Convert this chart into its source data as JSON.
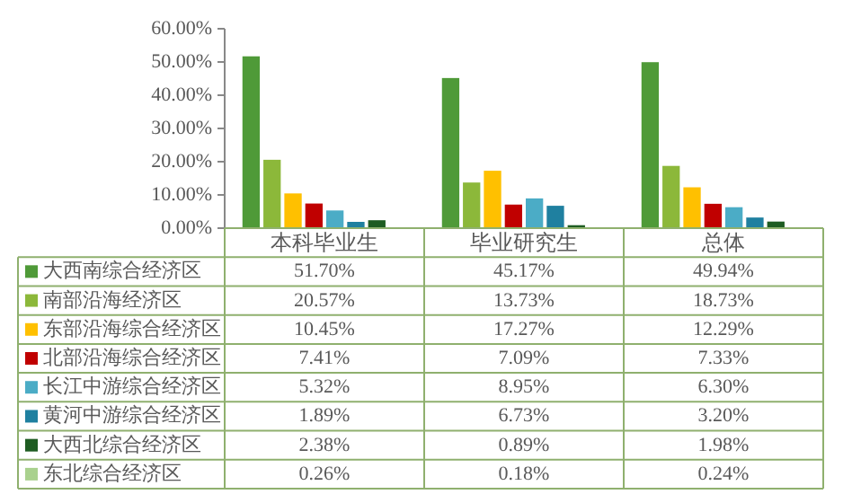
{
  "chart_data": {
    "type": "bar",
    "categories": [
      "本科毕业生",
      "毕业研究生",
      "总体"
    ],
    "series": [
      {
        "name": "大西南综合经济区",
        "color": "#4f9a38",
        "values": [
          51.7,
          45.17,
          49.94
        ],
        "value_labels": [
          "51.70%",
          "45.17%",
          "49.94%"
        ]
      },
      {
        "name": "南部沿海经济区",
        "color": "#8cb83a",
        "values": [
          20.57,
          13.73,
          18.73
        ],
        "value_labels": [
          "20.57%",
          "13.73%",
          "18.73%"
        ]
      },
      {
        "name": "东部沿海综合经济区",
        "color": "#ffc000",
        "values": [
          10.45,
          17.27,
          12.29
        ],
        "value_labels": [
          "10.45%",
          "17.27%",
          "12.29%"
        ]
      },
      {
        "name": "北部沿海综合经济区",
        "color": "#c00000",
        "values": [
          7.41,
          7.09,
          7.33
        ],
        "value_labels": [
          "7.41%",
          "7.09%",
          "7.33%"
        ]
      },
      {
        "name": "长江中游综合经济区",
        "color": "#4bacc6",
        "values": [
          5.32,
          8.95,
          6.3
        ],
        "value_labels": [
          "5.32%",
          "8.95%",
          "6.30%"
        ]
      },
      {
        "name": "黄河中游综合经济区",
        "color": "#1f80a0",
        "values": [
          1.89,
          6.73,
          3.2
        ],
        "value_labels": [
          "1.89%",
          "6.73%",
          "3.20%"
        ]
      },
      {
        "name": "大西北综合经济区",
        "color": "#1e5c22",
        "values": [
          2.38,
          0.89,
          1.98
        ],
        "value_labels": [
          "2.38%",
          "0.89%",
          "1.98%"
        ]
      },
      {
        "name": "东北综合经济区",
        "color": "#a9d18e",
        "values": [
          0.26,
          0.18,
          0.24
        ],
        "value_labels": [
          "0.26%",
          "0.18%",
          "0.24%"
        ]
      }
    ],
    "ylim": [
      0,
      60
    ],
    "yticks": [
      {
        "value": 0,
        "label": "0.00%"
      },
      {
        "value": 10,
        "label": "10.00%"
      },
      {
        "value": 20,
        "label": "20.00%"
      },
      {
        "value": 30,
        "label": "30.00%"
      },
      {
        "value": 40,
        "label": "40.00%"
      },
      {
        "value": 50,
        "label": "50.00%"
      },
      {
        "value": 60,
        "label": "60.00%"
      }
    ],
    "grid": false,
    "legend": "left"
  }
}
